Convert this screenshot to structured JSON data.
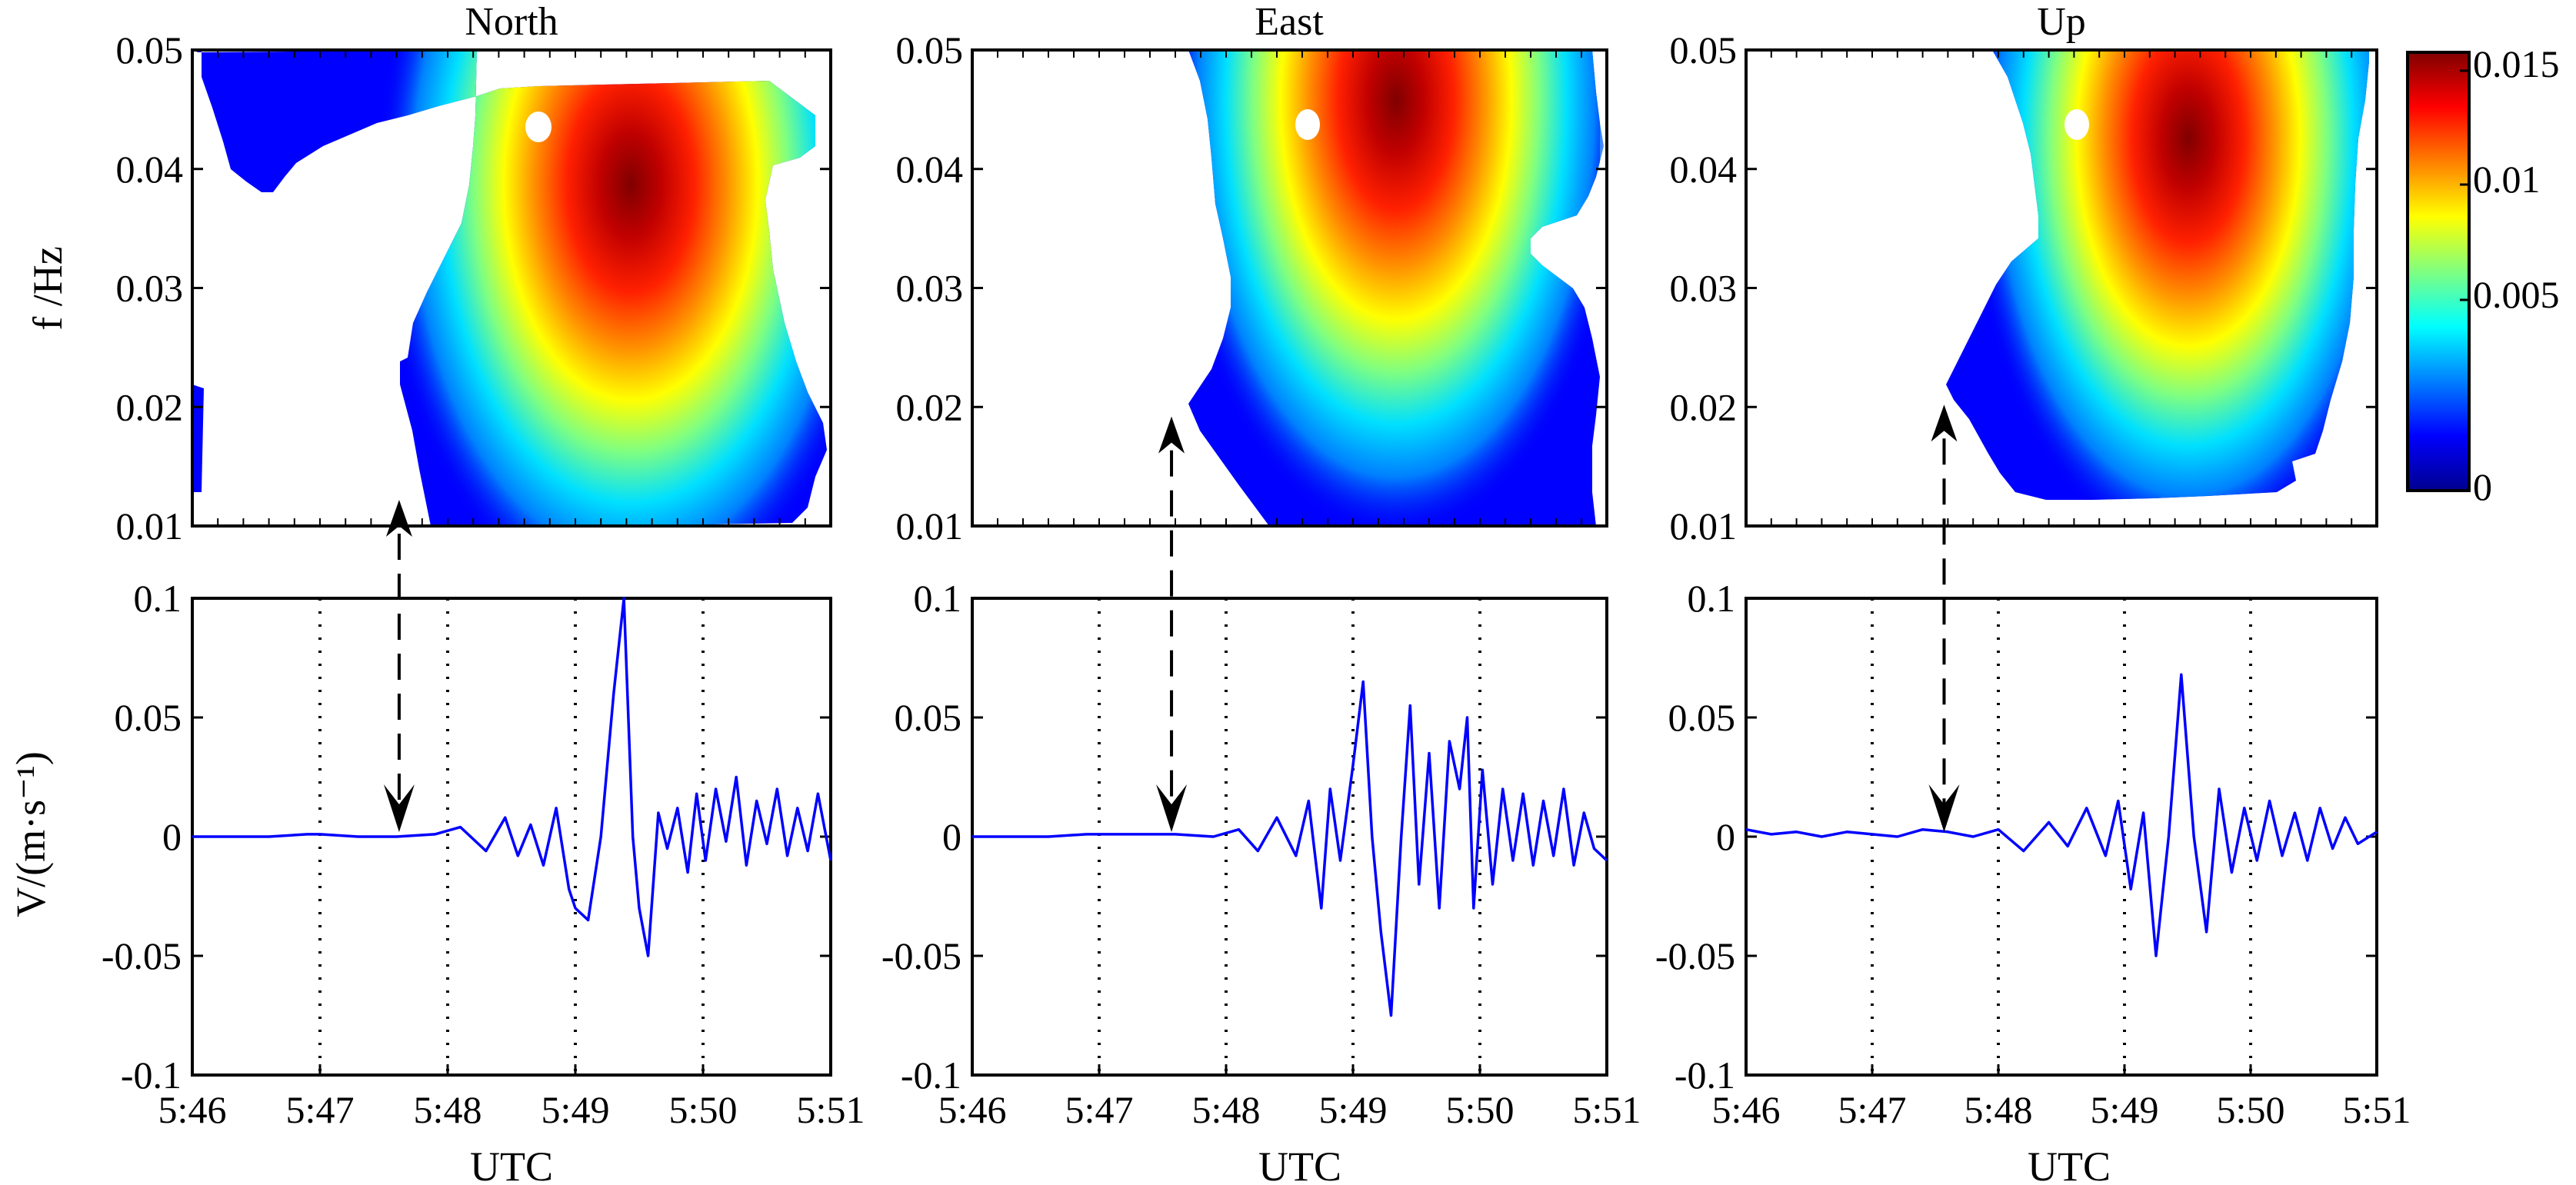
{
  "chart_data": [
    {
      "type": "heatmap",
      "title": "North",
      "ylabel": "f /Hz",
      "ylim": [
        0.01,
        0.05
      ],
      "yticks": [
        "0.01",
        "0.02",
        "0.03",
        "0.04",
        "0.05"
      ],
      "xlim_minutes": [
        0,
        5
      ],
      "peak": {
        "time_min": 3.45,
        "freq_hz": 0.036,
        "amplitude": 0.015
      },
      "onset_arrow": {
        "time_min": 1.62,
        "freq_hz": 0.01
      }
    },
    {
      "type": "heatmap",
      "title": "East",
      "ylim": [
        0.01,
        0.05
      ],
      "yticks": [
        "0.01",
        "0.02",
        "0.03",
        "0.04",
        "0.05"
      ],
      "xlim_minutes": [
        0,
        5
      ],
      "peak": {
        "time_min": 3.4,
        "freq_hz": 0.045,
        "amplitude": 0.015
      },
      "onset_arrow": {
        "time_min": 1.57,
        "freq_hz": 0.017
      }
    },
    {
      "type": "heatmap",
      "title": "Up",
      "ylim": [
        0.01,
        0.05
      ],
      "yticks": [
        "0.01",
        "0.02",
        "0.03",
        "0.04",
        "0.05"
      ],
      "xlim_minutes": [
        0,
        5
      ],
      "peak": {
        "time_min": 3.45,
        "freq_hz": 0.042,
        "amplitude": 0.014
      },
      "onset_arrow": {
        "time_min": 1.57,
        "freq_hz": 0.018
      },
      "colorbar": {
        "range": [
          0,
          0.015
        ],
        "ticks": [
          "0",
          "0.005",
          "0.01",
          "0.015"
        ]
      }
    },
    {
      "type": "line",
      "series": [
        {
          "color": "#0000ff",
          "x": [
            0,
            0.3,
            0.6,
            0.9,
            1.0,
            1.3,
            1.6,
            1.9,
            2.1,
            2.3,
            2.45,
            2.55,
            2.65,
            2.75,
            2.85,
            2.95,
            3.0,
            3.1,
            3.2,
            3.3,
            3.38,
            3.45,
            3.5,
            3.57,
            3.65,
            3.72,
            3.8,
            3.88,
            3.95,
            4.02,
            4.1,
            4.18,
            4.26,
            4.34,
            4.42,
            4.5,
            4.58,
            4.66,
            4.74,
            4.82,
            4.9,
            5.0
          ],
          "y": [
            0.0,
            0.0,
            0.0,
            0.001,
            0.001,
            0.0,
            0.0,
            0.001,
            0.004,
            -0.006,
            0.008,
            -0.008,
            0.005,
            -0.012,
            0.012,
            -0.022,
            -0.03,
            -0.035,
            0.0,
            0.06,
            0.1,
            0.0,
            -0.03,
            -0.05,
            0.01,
            -0.005,
            0.012,
            -0.015,
            0.018,
            -0.01,
            0.02,
            -0.002,
            0.025,
            -0.012,
            0.015,
            -0.003,
            0.02,
            -0.008,
            0.012,
            -0.006,
            0.018,
            -0.01
          ]
        }
      ],
      "ylabel": "V/(m·s⁻¹)",
      "xlabel": "UTC",
      "ylim": [
        -0.1,
        0.1
      ],
      "yticks": [
        "-0.1",
        "-0.05",
        "0",
        "0.05",
        "0.1"
      ],
      "xticks": [
        "5:46",
        "5:47",
        "5:48",
        "5:49",
        "5:50",
        "5:51"
      ],
      "grid": "dotted vertical lines at 5:47, 5:48, 5:49, 5:50",
      "arrow_time_min": 1.62
    },
    {
      "type": "line",
      "series": [
        {
          "color": "#0000ff",
          "x": [
            0,
            0.3,
            0.6,
            0.9,
            1.0,
            1.3,
            1.6,
            1.9,
            2.1,
            2.25,
            2.4,
            2.55,
            2.65,
            2.75,
            2.82,
            2.9,
            3.0,
            3.08,
            3.15,
            3.22,
            3.3,
            3.38,
            3.45,
            3.52,
            3.6,
            3.68,
            3.76,
            3.84,
            3.9,
            3.95,
            4.02,
            4.1,
            4.18,
            4.26,
            4.34,
            4.42,
            4.5,
            4.58,
            4.66,
            4.74,
            4.82,
            4.9,
            5.0
          ],
          "y": [
            0.0,
            0.0,
            0.0,
            0.001,
            0.001,
            0.001,
            0.001,
            0.0,
            0.003,
            -0.006,
            0.008,
            -0.008,
            0.015,
            -0.03,
            0.02,
            -0.01,
            0.03,
            0.065,
            0.0,
            -0.04,
            -0.075,
            0.0,
            0.055,
            -0.02,
            0.035,
            -0.03,
            0.04,
            0.02,
            0.05,
            -0.03,
            0.028,
            -0.02,
            0.02,
            -0.01,
            0.018,
            -0.012,
            0.015,
            -0.008,
            0.02,
            -0.012,
            0.01,
            -0.005,
            -0.01
          ]
        }
      ],
      "xlabel": "UTC",
      "ylim": [
        -0.1,
        0.1
      ],
      "yticks": [
        "-0.1",
        "-0.05",
        "0",
        "0.05",
        "0.1"
      ],
      "xticks": [
        "5:46",
        "5:47",
        "5:48",
        "5:49",
        "5:50",
        "5:51"
      ],
      "grid": "dotted vertical lines at 5:47, 5:48, 5:49, 5:50",
      "arrow_time_min": 1.57
    },
    {
      "type": "line",
      "series": [
        {
          "color": "#0000ff",
          "x": [
            0,
            0.2,
            0.4,
            0.6,
            0.8,
            1.0,
            1.2,
            1.4,
            1.6,
            1.8,
            2.0,
            2.2,
            2.4,
            2.55,
            2.7,
            2.85,
            2.95,
            3.05,
            3.15,
            3.25,
            3.35,
            3.45,
            3.55,
            3.65,
            3.75,
            3.85,
            3.95,
            4.05,
            4.15,
            4.25,
            4.35,
            4.45,
            4.55,
            4.65,
            4.75,
            4.85,
            5.0
          ],
          "y": [
            0.003,
            0.001,
            0.002,
            0.0,
            0.002,
            0.001,
            0.0,
            0.003,
            0.002,
            0.0,
            0.003,
            -0.006,
            0.006,
            -0.004,
            0.012,
            -0.008,
            0.015,
            -0.022,
            0.01,
            -0.05,
            0.0,
            0.068,
            0.0,
            -0.04,
            0.02,
            -0.015,
            0.012,
            -0.01,
            0.015,
            -0.008,
            0.01,
            -0.01,
            0.012,
            -0.005,
            0.008,
            -0.003,
            0.002
          ]
        }
      ],
      "xlabel": "UTC",
      "ylim": [
        -0.1,
        0.1
      ],
      "yticks": [
        "-0.1",
        "-0.05",
        "0",
        "0.05",
        "0.1"
      ],
      "xticks": [
        "5:46",
        "5:47",
        "5:48",
        "5:49",
        "5:50",
        "5:51"
      ],
      "grid": "dotted vertical lines at 5:47, 5:48, 5:49, 5:50",
      "arrow_time_min": 1.57
    }
  ]
}
